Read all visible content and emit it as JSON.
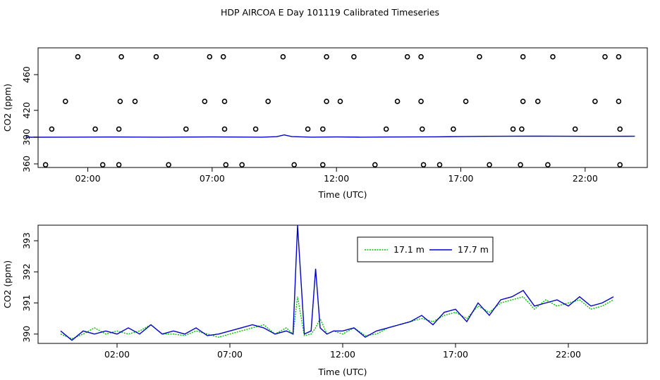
{
  "title": "HDP AIRCOA E  Day 101119  Calibrated Timeseries",
  "colors": {
    "green": "#00c000",
    "blue": "#0000cc",
    "black": "#000000"
  },
  "chart_data": [
    {
      "type": "scatter",
      "xlabel": "Time (UTC)",
      "ylabel": "CO2 (ppm)",
      "x_unit": "hours UTC",
      "xlim": [
        0,
        24.5
      ],
      "ylim": [
        356,
        490
      ],
      "xticks": [
        2,
        7,
        12,
        17,
        22
      ],
      "xtick_labels": [
        "02:00",
        "07:00",
        "12:00",
        "17:00",
        "22:00"
      ],
      "yticks": [
        360,
        390,
        420,
        460
      ],
      "ytick_labels": [
        "360",
        "390",
        "420",
        "460"
      ],
      "points": [
        [
          1.6,
          480
        ],
        [
          3.35,
          480
        ],
        [
          4.75,
          480
        ],
        [
          6.9,
          480
        ],
        [
          7.45,
          480
        ],
        [
          9.85,
          480
        ],
        [
          11.6,
          480
        ],
        [
          12.7,
          480
        ],
        [
          14.85,
          480
        ],
        [
          15.4,
          480
        ],
        [
          17.75,
          480
        ],
        [
          19.5,
          480
        ],
        [
          20.7,
          480
        ],
        [
          22.8,
          480
        ],
        [
          23.35,
          480
        ],
        [
          1.1,
          430
        ],
        [
          3.3,
          430
        ],
        [
          3.9,
          430
        ],
        [
          6.7,
          430
        ],
        [
          7.5,
          430
        ],
        [
          9.25,
          430
        ],
        [
          11.6,
          430
        ],
        [
          12.15,
          430
        ],
        [
          14.45,
          430
        ],
        [
          15.4,
          430
        ],
        [
          17.2,
          430
        ],
        [
          19.5,
          430
        ],
        [
          20.1,
          430
        ],
        [
          22.4,
          430
        ],
        [
          23.35,
          430
        ],
        [
          0.55,
          399
        ],
        [
          2.3,
          399
        ],
        [
          3.25,
          399
        ],
        [
          5.95,
          399
        ],
        [
          7.5,
          399
        ],
        [
          8.75,
          399
        ],
        [
          10.85,
          399
        ],
        [
          11.45,
          399
        ],
        [
          14.0,
          399
        ],
        [
          15.45,
          399
        ],
        [
          16.7,
          399
        ],
        [
          19.1,
          399
        ],
        [
          19.45,
          399
        ],
        [
          21.6,
          399
        ],
        [
          23.4,
          399
        ],
        [
          0.3,
          359
        ],
        [
          2.6,
          359
        ],
        [
          3.25,
          359
        ],
        [
          5.25,
          359
        ],
        [
          7.55,
          359
        ],
        [
          8.2,
          359
        ],
        [
          10.3,
          359
        ],
        [
          11.45,
          359
        ],
        [
          13.55,
          359
        ],
        [
          15.5,
          359
        ],
        [
          16.15,
          359
        ],
        [
          18.15,
          359
        ],
        [
          19.4,
          359
        ],
        [
          20.5,
          359
        ],
        [
          23.4,
          359
        ]
      ],
      "series": [
        {
          "name": "",
          "color": "#0000cc",
          "x": [
            -0.5,
            1,
            3,
            5,
            7,
            9,
            9.6,
            9.9,
            10.2,
            11,
            12,
            13,
            14,
            15,
            16,
            17,
            18,
            19,
            20,
            21,
            22,
            23,
            24
          ],
          "values": [
            389.9,
            390,
            390.1,
            390,
            390.2,
            390,
            390.5,
            392.5,
            390.6,
            390,
            390.2,
            390,
            390.1,
            390.2,
            390.4,
            390.6,
            390.9,
            391,
            391.1,
            391,
            390.9,
            390.9,
            391
          ]
        }
      ]
    },
    {
      "type": "line",
      "xlabel": "Time (UTC)",
      "ylabel": "CO2 (ppm)",
      "x_unit": "hours UTC",
      "xlim": [
        -1.5,
        25.5
      ],
      "ylim": [
        389.7,
        393.5
      ],
      "xticks": [
        2,
        7,
        12,
        17,
        22
      ],
      "xtick_labels": [
        "02:00",
        "07:00",
        "12:00",
        "17:00",
        "22:00"
      ],
      "yticks": [
        390,
        391,
        392,
        393
      ],
      "ytick_labels": [
        "390",
        "391",
        "392",
        "393"
      ],
      "legend": {
        "position": "top-center",
        "entries": [
          "17.1 m",
          "17.7 m"
        ]
      },
      "series": [
        {
          "name": "17.1 m",
          "color": "#00c000",
          "style": "dotted",
          "x": [
            -0.5,
            0,
            0.5,
            1,
            1.5,
            2,
            2.5,
            3,
            3.5,
            4,
            4.5,
            5,
            5.5,
            6,
            6.5,
            7,
            7.5,
            8,
            8.5,
            9,
            9.5,
            9.8,
            10,
            10.3,
            10.6,
            10.8,
            11,
            11.3,
            11.6,
            12,
            12.5,
            13,
            13.5,
            14,
            14.5,
            15,
            15.5,
            16,
            16.5,
            17,
            17.5,
            18,
            18.5,
            19,
            19.5,
            20,
            20.5,
            21,
            21.5,
            22,
            22.5,
            23,
            23.5,
            24
          ],
          "values": [
            390.0,
            389.85,
            390.0,
            390.2,
            390.0,
            390.1,
            390.0,
            390.1,
            390.3,
            390.0,
            390.0,
            389.95,
            390.1,
            390.0,
            389.9,
            390.0,
            390.1,
            390.2,
            390.3,
            390.0,
            390.2,
            390.0,
            391.2,
            389.95,
            390.0,
            390.2,
            390.5,
            390.0,
            390.1,
            390.0,
            390.2,
            389.95,
            390.0,
            390.2,
            390.3,
            390.4,
            390.5,
            390.4,
            390.6,
            390.7,
            390.5,
            390.9,
            390.7,
            391.0,
            391.1,
            391.2,
            390.8,
            391.1,
            390.9,
            391.0,
            391.1,
            390.8,
            390.9,
            391.1
          ]
        },
        {
          "name": "17.7 m",
          "color": "#0000cc",
          "style": "solid",
          "x": [
            -0.5,
            0,
            0.5,
            1,
            1.5,
            2,
            2.5,
            3,
            3.5,
            4,
            4.5,
            5,
            5.5,
            6,
            6.5,
            7,
            7.5,
            8,
            8.5,
            9,
            9.5,
            9.8,
            10,
            10.3,
            10.6,
            10.8,
            11,
            11.3,
            11.6,
            12,
            12.5,
            13,
            13.5,
            14,
            14.5,
            15,
            15.5,
            16,
            16.5,
            17,
            17.5,
            18,
            18.5,
            19,
            19.5,
            20,
            20.5,
            21,
            21.5,
            22,
            22.5,
            23,
            23.5,
            24
          ],
          "values": [
            390.1,
            389.8,
            390.1,
            390.0,
            390.1,
            390.0,
            390.2,
            390.0,
            390.3,
            390.0,
            390.1,
            390.0,
            390.2,
            389.95,
            390.0,
            390.1,
            390.2,
            390.3,
            390.2,
            390.0,
            390.1,
            390.0,
            393.5,
            390.0,
            390.1,
            392.1,
            390.2,
            390.0,
            390.1,
            390.1,
            390.2,
            389.9,
            390.1,
            390.2,
            390.3,
            390.4,
            390.6,
            390.3,
            390.7,
            390.8,
            390.4,
            391.0,
            390.6,
            391.1,
            391.2,
            391.4,
            390.9,
            391.0,
            391.1,
            390.9,
            391.2,
            390.9,
            391.0,
            391.2
          ]
        }
      ]
    }
  ]
}
